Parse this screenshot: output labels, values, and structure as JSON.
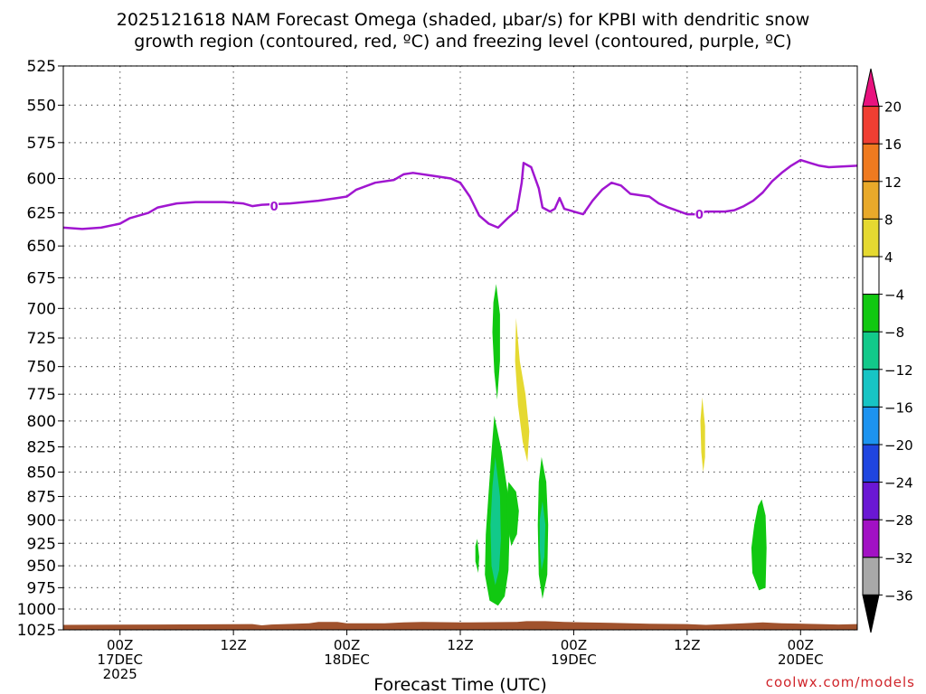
{
  "chart_data": {
    "type": "heatmap",
    "title_lines": [
      "2025121618 NAM Forecast Omega (shaded, µbar/s) for KPBI with dendritic snow",
      "growth region (contoured, red, ºC) and freezing level (contoured, purple, ºC)"
    ],
    "xlabel": "Forecast Time (UTC)",
    "credit": "coolwx.com/models",
    "x_axis_unit": "hours since 2025-12-16 18Z",
    "xlim": [
      0,
      84
    ],
    "x_ticks": [
      {
        "x": 6,
        "lines": [
          "00Z",
          "17DEC",
          "2025"
        ]
      },
      {
        "x": 18,
        "lines": [
          "12Z"
        ]
      },
      {
        "x": 30,
        "lines": [
          "00Z",
          "18DEC"
        ]
      },
      {
        "x": 42,
        "lines": [
          "12Z"
        ]
      },
      {
        "x": 54,
        "lines": [
          "00Z",
          "19DEC"
        ]
      },
      {
        "x": 66,
        "lines": [
          "12Z"
        ]
      },
      {
        "x": 78,
        "lines": [
          "00Z",
          "20DEC"
        ]
      }
    ],
    "ylabel": "",
    "y_scale": "log-pressure (hPa, inverted)",
    "ylim": [
      1025,
      525
    ],
    "y_ticks": [
      525,
      550,
      575,
      600,
      625,
      650,
      675,
      700,
      725,
      750,
      775,
      800,
      825,
      850,
      875,
      900,
      925,
      950,
      975,
      1000,
      1025
    ],
    "grid": true,
    "colorbar": {
      "labels": [
        "20",
        "16",
        "12",
        "8",
        "4",
        "−4",
        "−8",
        "−12",
        "−16",
        "−20",
        "−24",
        "−28",
        "−32",
        "−36"
      ],
      "bins": [
        {
          "range": "> 20",
          "color": "#e8127e"
        },
        {
          "range": "16 to 20",
          "color": "#f03e32"
        },
        {
          "range": "12 to 16",
          "color": "#ef7a1f"
        },
        {
          "range": "8 to 12",
          "color": "#e8a92a"
        },
        {
          "range": "4 to 8",
          "color": "#e5d931"
        },
        {
          "range": "-4 to 4",
          "color": "#ffffff"
        },
        {
          "range": "-8 to -4",
          "color": "#11c811"
        },
        {
          "range": "-12 to -8",
          "color": "#12c98a"
        },
        {
          "range": "-16 to -12",
          "color": "#17c4c4"
        },
        {
          "range": "-20 to -16",
          "color": "#1c93f0"
        },
        {
          "range": "-24 to -20",
          "color": "#1f45e0"
        },
        {
          "range": "-28 to -24",
          "color": "#6a17d4"
        },
        {
          "range": "-32 to -28",
          "color": "#a211c4"
        },
        {
          "range": "-36 to -32",
          "color": "#a8a8a8"
        },
        {
          "range": "< -36",
          "color": "#000000"
        }
      ]
    },
    "freezing_level": {
      "label": "0",
      "color": "#a016d0",
      "points": [
        [
          0,
          636
        ],
        [
          2,
          637
        ],
        [
          4,
          636
        ],
        [
          6,
          633
        ],
        [
          7,
          629
        ],
        [
          9,
          625
        ],
        [
          10,
          621
        ],
        [
          12,
          618
        ],
        [
          14,
          617
        ],
        [
          17,
          617
        ],
        [
          19,
          618
        ],
        [
          20,
          620
        ],
        [
          21,
          619
        ],
        [
          24,
          618
        ],
        [
          27,
          616
        ],
        [
          29,
          614
        ],
        [
          30,
          613
        ],
        [
          31,
          608
        ],
        [
          33,
          603
        ],
        [
          35,
          601
        ],
        [
          36,
          597
        ],
        [
          37,
          596
        ],
        [
          39,
          598
        ],
        [
          41,
          600
        ],
        [
          42,
          603
        ],
        [
          43,
          613
        ],
        [
          44,
          627
        ],
        [
          45,
          633
        ],
        [
          46,
          636
        ],
        [
          47,
          629
        ],
        [
          48,
          623
        ],
        [
          48.5,
          603
        ],
        [
          48.7,
          589
        ],
        [
          49.5,
          592
        ],
        [
          50.3,
          607
        ],
        [
          50.7,
          621
        ],
        [
          51.5,
          624
        ],
        [
          52,
          622
        ],
        [
          52.5,
          614
        ],
        [
          53,
          622
        ],
        [
          54,
          624
        ],
        [
          55,
          626
        ],
        [
          56,
          616
        ],
        [
          57,
          608
        ],
        [
          58,
          603
        ],
        [
          59,
          605
        ],
        [
          60,
          611
        ],
        [
          61,
          612
        ],
        [
          62,
          613
        ],
        [
          63,
          618
        ],
        [
          64,
          621
        ],
        [
          66,
          626
        ],
        [
          67,
          626
        ],
        [
          68,
          624
        ],
        [
          70,
          624
        ],
        [
          71,
          623
        ],
        [
          72,
          620
        ],
        [
          73,
          616
        ],
        [
          74,
          610
        ],
        [
          75,
          602
        ],
        [
          76,
          596
        ],
        [
          77,
          591
        ],
        [
          78,
          587
        ],
        [
          79,
          589
        ],
        [
          80,
          591
        ],
        [
          81,
          592
        ],
        [
          84,
          591
        ]
      ]
    },
    "omega_regions": [
      {
        "bin": "-8 to -4",
        "color": "#11c811",
        "poly": [
          [
            45.8,
            680
          ],
          [
            46.2,
            705
          ],
          [
            46.2,
            745
          ],
          [
            45.9,
            780
          ],
          [
            45.6,
            755
          ],
          [
            45.4,
            720
          ],
          [
            45.5,
            695
          ]
        ]
      },
      {
        "bin": "-8 to -4",
        "color": "#11c811",
        "poly": [
          [
            45.6,
            795
          ],
          [
            46.4,
            830
          ],
          [
            47.0,
            870
          ],
          [
            47.2,
            915
          ],
          [
            47.1,
            955
          ],
          [
            46.7,
            985
          ],
          [
            46.0,
            996
          ],
          [
            45.1,
            990
          ],
          [
            44.6,
            960
          ],
          [
            44.7,
            915
          ],
          [
            45.0,
            870
          ],
          [
            45.3,
            830
          ]
        ]
      },
      {
        "bin": "-12 to -8",
        "color": "#12c98a",
        "poly": [
          [
            45.7,
            835
          ],
          [
            46.2,
            875
          ],
          [
            46.3,
            920
          ],
          [
            46.1,
            955
          ],
          [
            45.7,
            972
          ],
          [
            45.3,
            950
          ],
          [
            45.2,
            905
          ],
          [
            45.4,
            865
          ]
        ]
      },
      {
        "bin": "-8 to -4",
        "color": "#11c811",
        "poly": [
          [
            47.1,
            860
          ],
          [
            47.9,
            870
          ],
          [
            48.2,
            890
          ],
          [
            48.0,
            915
          ],
          [
            47.4,
            928
          ],
          [
            47.0,
            905
          ],
          [
            46.9,
            880
          ]
        ]
      },
      {
        "bin": "-8 to -4",
        "color": "#11c811",
        "poly": [
          [
            43.8,
            920
          ],
          [
            44.0,
            940
          ],
          [
            43.9,
            958
          ],
          [
            43.6,
            945
          ],
          [
            43.6,
            928
          ]
        ]
      },
      {
        "bin": "-8 to -4",
        "color": "#11c811",
        "poly": [
          [
            50.6,
            835
          ],
          [
            51.1,
            860
          ],
          [
            51.3,
            905
          ],
          [
            51.2,
            960
          ],
          [
            50.7,
            988
          ],
          [
            50.3,
            960
          ],
          [
            50.2,
            905
          ],
          [
            50.3,
            860
          ]
        ]
      },
      {
        "bin": "-12 to -8",
        "color": "#12c98a",
        "poly": [
          [
            50.7,
            880
          ],
          [
            51.0,
            905
          ],
          [
            50.9,
            940
          ],
          [
            50.6,
            955
          ],
          [
            50.4,
            930
          ],
          [
            50.4,
            900
          ]
        ]
      },
      {
        "bin": "-8 to -4",
        "color": "#11c811",
        "poly": [
          [
            73.9,
            878
          ],
          [
            74.3,
            895
          ],
          [
            74.4,
            930
          ],
          [
            74.3,
            975
          ],
          [
            73.6,
            978
          ],
          [
            72.9,
            958
          ],
          [
            72.8,
            930
          ],
          [
            73.1,
            905
          ],
          [
            73.5,
            885
          ]
        ]
      },
      {
        "bin": "4 to 8",
        "color": "#e5d931",
        "poly": [
          [
            47.9,
            708
          ],
          [
            48.3,
            745
          ],
          [
            48.9,
            775
          ],
          [
            49.3,
            810
          ],
          [
            49.1,
            840
          ],
          [
            48.6,
            820
          ],
          [
            48.1,
            785
          ],
          [
            47.8,
            745
          ]
        ]
      },
      {
        "bin": "4 to 8",
        "color": "#e5d931",
        "poly": [
          [
            67.6,
            778
          ],
          [
            67.9,
            805
          ],
          [
            67.9,
            835
          ],
          [
            67.7,
            850
          ],
          [
            67.5,
            830
          ],
          [
            67.4,
            800
          ]
        ]
      }
    ],
    "surface_terrain": {
      "color": "#a0522d",
      "points": [
        [
          0,
          1019
        ],
        [
          10,
          1018.5
        ],
        [
          20,
          1018
        ],
        [
          21,
          1019.5
        ],
        [
          22,
          1018.5
        ],
        [
          26,
          1017
        ],
        [
          27,
          1015.5
        ],
        [
          29,
          1015.5
        ],
        [
          30,
          1017
        ],
        [
          34,
          1017
        ],
        [
          36,
          1016
        ],
        [
          38,
          1015.5
        ],
        [
          43,
          1016
        ],
        [
          48,
          1015.5
        ],
        [
          49,
          1014.5
        ],
        [
          51,
          1014.5
        ],
        [
          53,
          1015.5
        ],
        [
          58,
          1016.5
        ],
        [
          62,
          1017.5
        ],
        [
          66,
          1018
        ],
        [
          68,
          1019
        ],
        [
          70,
          1018
        ],
        [
          72,
          1017
        ],
        [
          74,
          1016
        ],
        [
          76,
          1017
        ],
        [
          80,
          1018
        ],
        [
          82,
          1018.5
        ],
        [
          84,
          1018
        ]
      ]
    }
  }
}
